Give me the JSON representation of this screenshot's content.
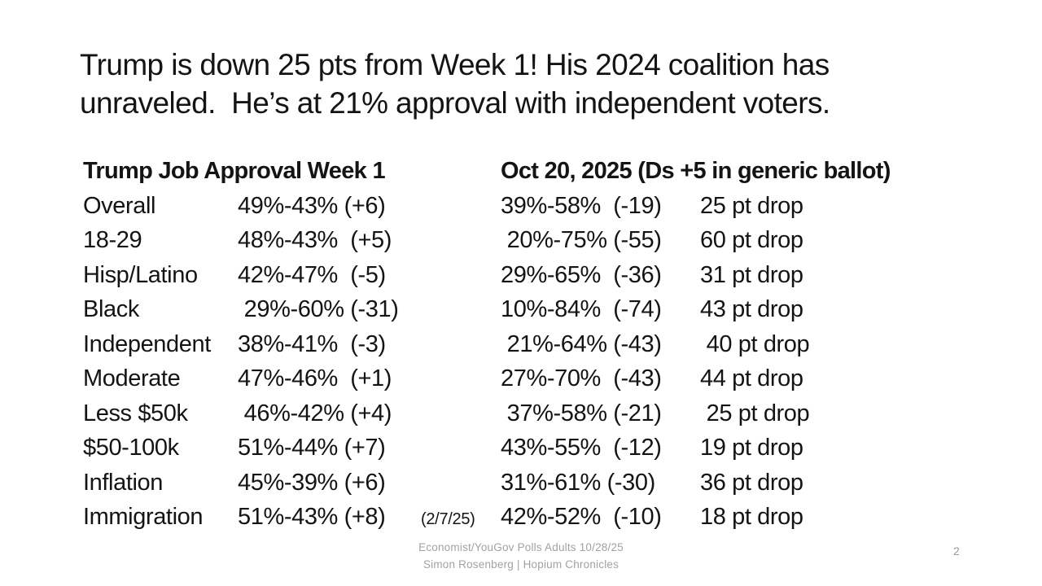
{
  "slide": {
    "title": "Trump is down 25 pts from Week 1! His 2024 coalition has\nunraveled.  He’s at 21% approval with independent voters.",
    "table": {
      "col1_header": "Trump Job Approval Week 1",
      "col2_header": "Oct 20, 2025 (Ds +5 in generic ballot)",
      "rows": [
        {
          "label": "Overall",
          "week1": "49%-43% (+6)",
          "note": "",
          "oct20": "39%-58%  (-19)",
          "drop": "25 pt drop"
        },
        {
          "label": "18-29",
          "week1": "48%-43%  (+5)",
          "note": "",
          "oct20": " 20%-75% (-55)",
          "drop": "60 pt drop"
        },
        {
          "label": "Hisp/Latino",
          "week1": "42%-47%  (-5)",
          "note": "",
          "oct20": "29%-65%  (-36)",
          "drop": "31 pt drop"
        },
        {
          "label": "Black",
          "week1": " 29%-60% (-31)",
          "note": "",
          "oct20": "10%-84%  (-74)",
          "drop": "43 pt drop"
        },
        {
          "label": "Independent",
          "week1": "38%-41%  (-3)",
          "note": "",
          "oct20": " 21%-64% (-43)",
          "drop": " 40 pt drop"
        },
        {
          "label": "Moderate",
          "week1": "47%-46%  (+1)",
          "note": "",
          "oct20": "27%-70%  (-43)",
          "drop": "44 pt drop"
        },
        {
          "label": "Less $50k",
          "week1": " 46%-42% (+4)",
          "note": "",
          "oct20": " 37%-58% (-21)",
          "drop": " 25 pt drop"
        },
        {
          "label": "$50-100k",
          "week1": "51%-44% (+7)",
          "note": "",
          "oct20": "43%-55%  (-12)",
          "drop": "19 pt drop"
        },
        {
          "label": "Inflation",
          "week1": "45%-39% (+6)",
          "note": "",
          "oct20": "31%-61% (-30)",
          "drop": "36 pt drop"
        },
        {
          "label": "Immigration",
          "week1": "51%-43% (+8)",
          "note": "(2/7/25)",
          "oct20": "42%-52%  (-10)",
          "drop": "18 pt drop"
        }
      ]
    },
    "footer": {
      "line1": "Economist/YouGov Polls Adults 10/28/25",
      "line2": "Simon Rosenberg | Hopium Chronicles",
      "page_number": "2"
    },
    "colors": {
      "background": "#ffffff",
      "text": "#141414",
      "footer_gray": "#a2a2a2"
    }
  }
}
